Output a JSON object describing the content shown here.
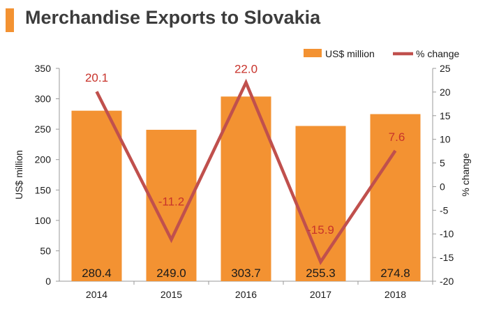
{
  "title": "Merchandise Exports to Slovakia",
  "colors": {
    "bar": "#f39232",
    "line": "#c0504d",
    "line_label": "#c8332b",
    "accent": "#f39232"
  },
  "legend": {
    "bar_label": "US$ million",
    "line_label": "% change",
    "placement": "top-right"
  },
  "chart_data": {
    "type": "bar",
    "categories": [
      "2014",
      "2015",
      "2016",
      "2017",
      "2018"
    ],
    "series": [
      {
        "name": "US$ million",
        "type": "bar",
        "axis": "left",
        "values": [
          280.4,
          249.0,
          303.7,
          255.3,
          274.8
        ]
      },
      {
        "name": "% change",
        "type": "line",
        "axis": "right",
        "values": [
          20.1,
          -11.2,
          22.0,
          -15.9,
          7.6
        ]
      }
    ],
    "ylabel": "US$ million",
    "ylabel_right": "% change",
    "ylim": [
      0,
      350
    ],
    "ylim_right": [
      -20,
      25
    ],
    "yticks": [
      0,
      50,
      100,
      150,
      200,
      250,
      300,
      350
    ],
    "yticks_right": [
      -20,
      -15,
      -10,
      -5,
      0,
      5,
      10,
      15,
      20,
      25
    ],
    "grid": false
  }
}
